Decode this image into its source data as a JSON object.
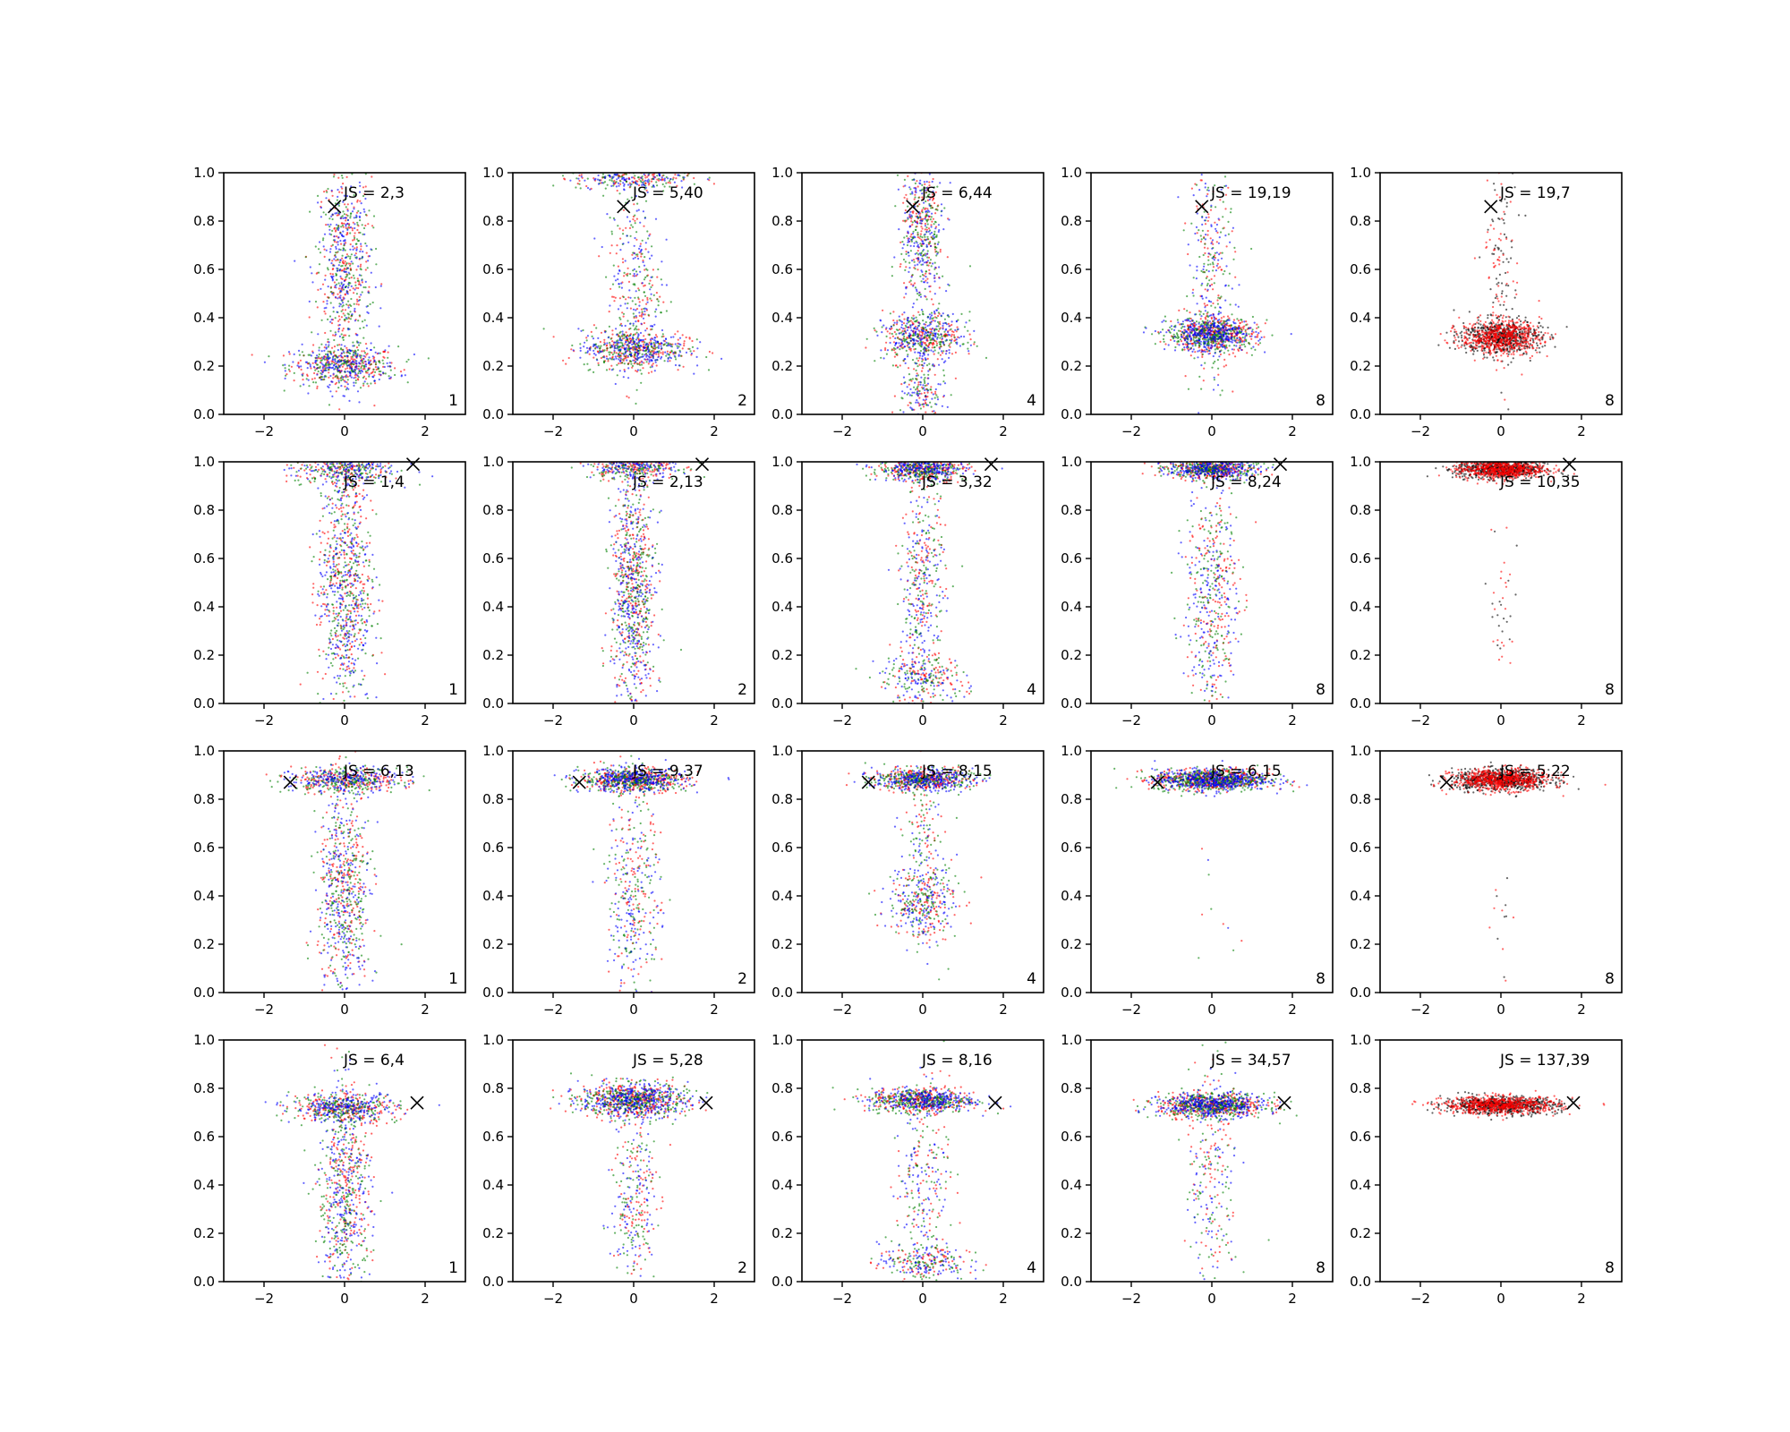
{
  "chart_data": {
    "type": "scatter",
    "layout": {
      "rows": 4,
      "cols": 5
    },
    "xlim": [
      -3,
      3
    ],
    "ylim": [
      0,
      1
    ],
    "xticks": [
      -2,
      0,
      2
    ],
    "yticks": [
      0.0,
      0.2,
      0.4,
      0.6,
      0.8,
      1.0
    ],
    "xtick_labels": [
      "−2",
      "0",
      "2"
    ],
    "ytick_labels": [
      "0.0",
      "0.2",
      "0.4",
      "0.6",
      "0.8",
      "1.0"
    ],
    "series_colors": {
      "red": "#ff0000",
      "green": "#008000",
      "blue": "#0000ff",
      "black": "#000000"
    },
    "rows": [
      {
        "marker": {
          "x": -0.25,
          "y": 0.86
        },
        "panels": [
          {
            "js": "JS = 2,3",
            "corner": "1",
            "series": [
              "red",
              "green",
              "blue"
            ],
            "clusters": [
              {
                "y": 0.2,
                "sx": 1.2,
                "sy": 0.04,
                "w": 0.45
              },
              {
                "y": 0.6,
                "sx": 0.6,
                "sy": 0.22,
                "w": 0.55
              }
            ]
          },
          {
            "js": "JS = 5,40",
            "corner": "2",
            "series": [
              "red",
              "green",
              "blue"
            ],
            "clusters": [
              {
                "y": 0.27,
                "sx": 1.2,
                "sy": 0.04,
                "w": 0.5
              },
              {
                "y": 0.98,
                "sx": 1.3,
                "sy": 0.025,
                "w": 0.25
              },
              {
                "y": 0.55,
                "sx": 0.6,
                "sy": 0.2,
                "w": 0.25
              }
            ]
          },
          {
            "js": "JS = 6,44",
            "corner": "4",
            "series": [
              "red",
              "green",
              "blue"
            ],
            "clusters": [
              {
                "y": 0.32,
                "sx": 0.9,
                "sy": 0.05,
                "w": 0.45
              },
              {
                "y": 0.75,
                "sx": 0.5,
                "sy": 0.15,
                "w": 0.4
              },
              {
                "y": 0.1,
                "sx": 0.5,
                "sy": 0.08,
                "w": 0.15
              }
            ]
          },
          {
            "js": "JS = 19,19",
            "corner": "8",
            "series": [
              "red",
              "green",
              "blue"
            ],
            "clusters": [
              {
                "y": 0.33,
                "sx": 1.0,
                "sy": 0.035,
                "w": 0.75
              },
              {
                "y": 0.6,
                "sx": 0.5,
                "sy": 0.25,
                "w": 0.25
              }
            ]
          },
          {
            "js": "JS = 19,7",
            "corner": "8",
            "series": [
              "black",
              "red"
            ],
            "clusters": [
              {
                "y": 0.32,
                "sx": 0.9,
                "sy": 0.035,
                "w": 0.88
              },
              {
                "y": 0.6,
                "sx": 0.4,
                "sy": 0.25,
                "w": 0.12
              }
            ]
          }
        ]
      },
      {
        "marker": {
          "x": 1.7,
          "y": 0.99
        },
        "panels": [
          {
            "js": "JS = 1,4",
            "corner": "1",
            "series": [
              "red",
              "green",
              "blue"
            ],
            "clusters": [
              {
                "y": 0.97,
                "sx": 1.2,
                "sy": 0.03,
                "w": 0.3
              },
              {
                "y": 0.5,
                "sx": 0.6,
                "sy": 0.28,
                "w": 0.7
              }
            ]
          },
          {
            "js": "JS = 2,13",
            "corner": "2",
            "series": [
              "red",
              "green",
              "blue"
            ],
            "clusters": [
              {
                "y": 0.98,
                "sx": 1.0,
                "sy": 0.025,
                "w": 0.3
              },
              {
                "y": 0.45,
                "sx": 0.5,
                "sy": 0.25,
                "w": 0.7
              }
            ]
          },
          {
            "js": "JS = 3,32",
            "corner": "4",
            "series": [
              "red",
              "green",
              "blue"
            ],
            "clusters": [
              {
                "y": 0.97,
                "sx": 1.0,
                "sy": 0.025,
                "w": 0.5
              },
              {
                "y": 0.1,
                "sx": 1.0,
                "sy": 0.05,
                "w": 0.2
              },
              {
                "y": 0.5,
                "sx": 0.5,
                "sy": 0.2,
                "w": 0.3
              }
            ]
          },
          {
            "js": "JS = 8,24",
            "corner": "8",
            "series": [
              "red",
              "green",
              "blue"
            ],
            "clusters": [
              {
                "y": 0.97,
                "sx": 1.0,
                "sy": 0.02,
                "w": 0.6
              },
              {
                "y": 0.45,
                "sx": 0.6,
                "sy": 0.25,
                "w": 0.4
              }
            ]
          },
          {
            "js": "JS = 10,35",
            "corner": "8",
            "series": [
              "black",
              "red"
            ],
            "clusters": [
              {
                "y": 0.97,
                "sx": 1.0,
                "sy": 0.02,
                "w": 0.97
              },
              {
                "y": 0.4,
                "sx": 0.3,
                "sy": 0.25,
                "w": 0.03
              }
            ]
          }
        ]
      },
      {
        "marker": {
          "x": -1.35,
          "y": 0.87
        },
        "panels": [
          {
            "js": "JS = 6,13",
            "corner": "1",
            "series": [
              "red",
              "green",
              "blue"
            ],
            "clusters": [
              {
                "y": 0.88,
                "sx": 1.2,
                "sy": 0.025,
                "w": 0.45
              },
              {
                "y": 0.4,
                "sx": 0.6,
                "sy": 0.22,
                "w": 0.55
              }
            ]
          },
          {
            "js": "JS = 9,37",
            "corner": "2",
            "series": [
              "red",
              "green",
              "blue"
            ],
            "clusters": [
              {
                "y": 0.88,
                "sx": 1.2,
                "sy": 0.025,
                "w": 0.7
              },
              {
                "y": 0.4,
                "sx": 0.6,
                "sy": 0.22,
                "w": 0.3
              }
            ]
          },
          {
            "js": "JS = 8,15",
            "corner": "4",
            "series": [
              "red",
              "green",
              "blue"
            ],
            "clusters": [
              {
                "y": 0.88,
                "sx": 1.1,
                "sy": 0.022,
                "w": 0.6
              },
              {
                "y": 0.38,
                "sx": 0.8,
                "sy": 0.08,
                "w": 0.25
              },
              {
                "y": 0.55,
                "sx": 0.5,
                "sy": 0.2,
                "w": 0.15
              }
            ]
          },
          {
            "js": "JS = 6,15",
            "corner": "8",
            "series": [
              "red",
              "green",
              "blue"
            ],
            "clusters": [
              {
                "y": 0.88,
                "sx": 1.3,
                "sy": 0.022,
                "w": 0.99
              },
              {
                "y": 0.3,
                "sx": 0.6,
                "sy": 0.2,
                "w": 0.01
              }
            ]
          },
          {
            "js": "JS = 5,22",
            "corner": "8",
            "series": [
              "black",
              "red"
            ],
            "clusters": [
              {
                "y": 0.88,
                "sx": 1.1,
                "sy": 0.022,
                "w": 0.99
              },
              {
                "y": 0.3,
                "sx": 0.3,
                "sy": 0.1,
                "w": 0.01
              }
            ]
          }
        ]
      },
      {
        "marker": {
          "x": 1.8,
          "y": 0.74
        },
        "panels": [
          {
            "js": "JS = 6,4",
            "corner": "1",
            "series": [
              "red",
              "green",
              "blue"
            ],
            "clusters": [
              {
                "y": 0.72,
                "sx": 1.2,
                "sy": 0.03,
                "w": 0.45
              },
              {
                "y": 0.35,
                "sx": 0.6,
                "sy": 0.22,
                "w": 0.55
              }
            ]
          },
          {
            "js": "JS = 5,28",
            "corner": "2",
            "series": [
              "red",
              "green",
              "blue"
            ],
            "clusters": [
              {
                "y": 0.75,
                "sx": 1.2,
                "sy": 0.035,
                "w": 0.78
              },
              {
                "y": 0.35,
                "sx": 0.5,
                "sy": 0.18,
                "w": 0.22
              }
            ]
          },
          {
            "js": "JS = 8,16",
            "corner": "4",
            "series": [
              "red",
              "green",
              "blue"
            ],
            "clusters": [
              {
                "y": 0.75,
                "sx": 1.2,
                "sy": 0.025,
                "w": 0.6
              },
              {
                "y": 0.08,
                "sx": 1.0,
                "sy": 0.04,
                "w": 0.2
              },
              {
                "y": 0.45,
                "sx": 0.6,
                "sy": 0.2,
                "w": 0.2
              }
            ]
          },
          {
            "js": "JS = 34,57",
            "corner": "8",
            "series": [
              "red",
              "green",
              "blue"
            ],
            "clusters": [
              {
                "y": 0.73,
                "sx": 1.2,
                "sy": 0.025,
                "w": 0.8
              },
              {
                "y": 0.4,
                "sx": 0.6,
                "sy": 0.25,
                "w": 0.2
              }
            ]
          },
          {
            "js": "JS = 137,39",
            "corner": "8",
            "series": [
              "black",
              "red"
            ],
            "clusters": [
              {
                "y": 0.73,
                "sx": 1.3,
                "sy": 0.018,
                "w": 1.0
              }
            ]
          }
        ]
      }
    ]
  }
}
